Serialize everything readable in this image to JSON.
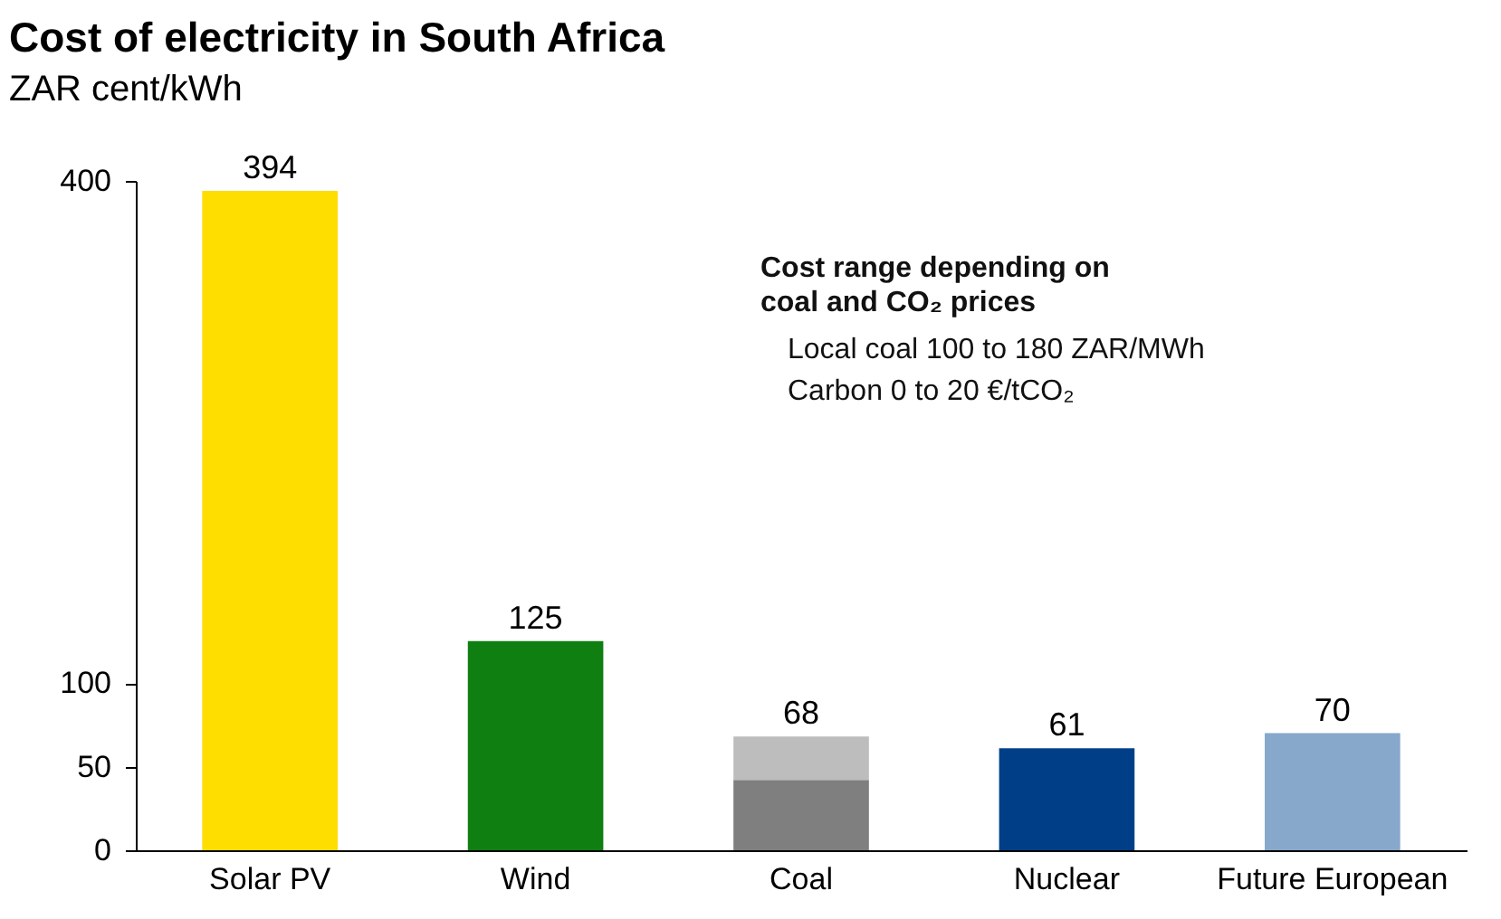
{
  "chart_data": {
    "type": "bar",
    "title": "Cost of electricity in South Africa",
    "subtitle": "ZAR cent/kWh",
    "stacked": true,
    "categories": [
      "Solar PV",
      "Wind",
      "Coal",
      "Nuclear",
      "Future European"
    ],
    "series": [
      {
        "colors": [
          "#fedd00",
          "#0f7f12",
          "#7f7f7f",
          "#003f87",
          "#87a7cb"
        ],
        "values": [
          394,
          125,
          42,
          61,
          70
        ]
      },
      {
        "color": "#bdbdbd",
        "values": [
          null,
          null,
          26,
          null,
          null
        ]
      }
    ],
    "totals": [
      "394",
      "125",
      "68",
      "61",
      "70"
    ],
    "ylim": [
      0,
      400
    ],
    "yticks": [
      0,
      50,
      100,
      400
    ],
    "grid": false,
    "legend": false,
    "annotations": [
      "Cost range depending on coal and CO₂ prices",
      "Local coal 100 to 180 ZAR/MWh",
      "Carbon 0 to 20 €/tCO₂"
    ]
  }
}
